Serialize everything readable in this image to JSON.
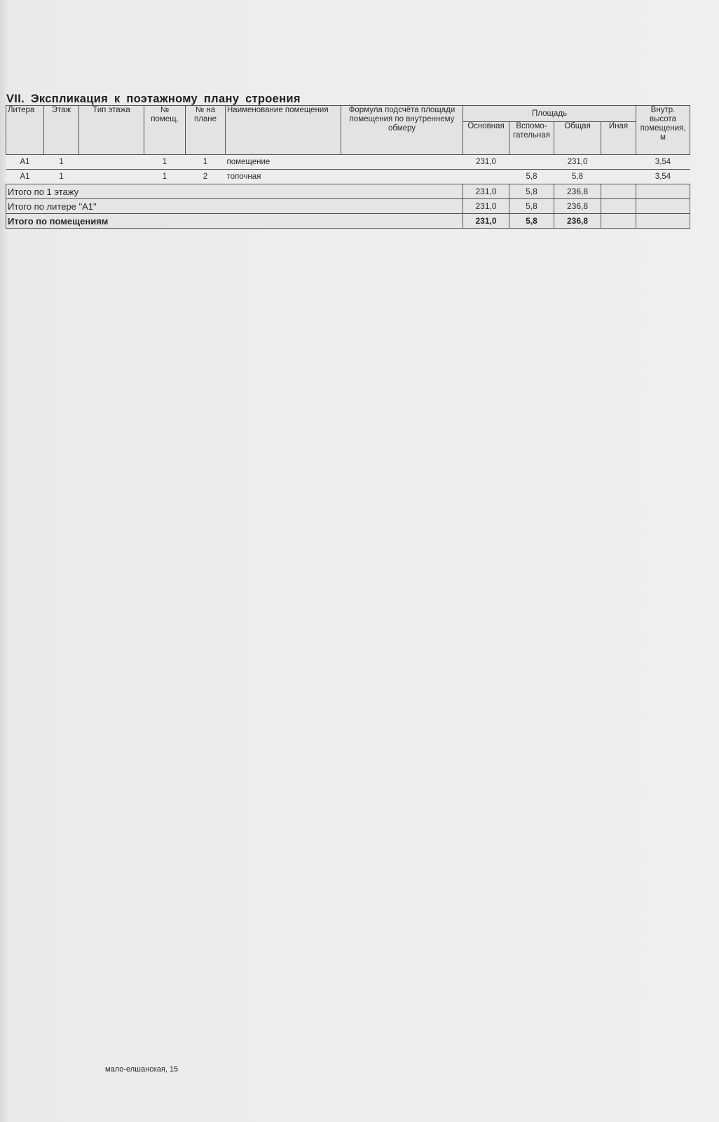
{
  "title": "VII.  Экспликация  к  поэтажному  плану строения",
  "headers": {
    "litera": "Литера",
    "etazh": "Этаж",
    "tip_etazha": "Тип этажа",
    "nom_pomeshch": "№ помещ.",
    "nom_na_plane": "№ на плане",
    "naimenovanie": "Наименование помещения",
    "formula": "Формула подсчёта площади помещения по внутреннему обмеру",
    "ploshchad": "Площадь",
    "osnovnaya": "Основная",
    "vspomogatelnaya": "Вспомо-гательная",
    "obshchaya": "Общая",
    "inaya": "Иная",
    "vysota": "Внутр. высота помещения, м"
  },
  "rows": [
    {
      "litera": "А1",
      "etazh": "1",
      "tip": "",
      "pomeshch": "1",
      "na_plane": "1",
      "name": "помещение",
      "formula": "",
      "osnovnaya": "231,0",
      "vspom": "",
      "obshchaya": "231,0",
      "inaya": "",
      "vysota": "3,54"
    },
    {
      "litera": "А1",
      "etazh": "1",
      "tip": "",
      "pomeshch": "1",
      "na_plane": "2",
      "name": "топочная",
      "formula": "",
      "osnovnaya": "",
      "vspom": "5,8",
      "obshchaya": "5,8",
      "inaya": "",
      "vysota": "3,54"
    }
  ],
  "totals": [
    {
      "label": "Итого по 1 этажу",
      "osnovnaya": "231,0",
      "vspom": "5,8",
      "obshchaya": "236,8"
    },
    {
      "label": "Итого по литере \"А1\"",
      "osnovnaya": "231,0",
      "vspom": "5,8",
      "obshchaya": "236,8"
    },
    {
      "label": "Итого по помещениям",
      "osnovnaya": "231,0",
      "vspom": "5,8",
      "obshchaya": "236,8"
    }
  ],
  "footer": "мало-елшанская, 15"
}
